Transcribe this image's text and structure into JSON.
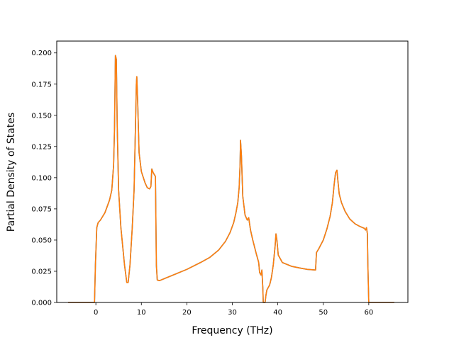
{
  "chart_data": {
    "type": "line",
    "title": "",
    "xlabel": "Frequency (THz)",
    "ylabel": "Partial Density of States",
    "xlim": [
      -8.6,
      68.6
    ],
    "ylim": [
      0.0,
      0.2095
    ],
    "xticks": [
      0,
      10,
      20,
      30,
      40,
      50,
      60
    ],
    "yticks": [
      0.0,
      0.025,
      0.05,
      0.075,
      0.1,
      0.125,
      0.15,
      0.175,
      0.2
    ],
    "ytick_labels": [
      "0.000",
      "0.025",
      "0.050",
      "0.075",
      "0.100",
      "0.125",
      "0.150",
      "0.175",
      "0.200"
    ],
    "grid": false,
    "legend": "none",
    "series": [
      {
        "color": "#1f77b4",
        "points": [
          [
            -6.1,
            0
          ],
          [
            -0.3,
            0
          ],
          [
            -0.1,
            0.03
          ],
          [
            0.2,
            0.06
          ],
          [
            0.5,
            0.064
          ],
          [
            1.0,
            0.066
          ],
          [
            2.0,
            0.072
          ],
          [
            3.0,
            0.082
          ],
          [
            3.5,
            0.09
          ],
          [
            3.9,
            0.11
          ],
          [
            4.1,
            0.14
          ],
          [
            4.3,
            0.198
          ],
          [
            4.5,
            0.195
          ],
          [
            4.7,
            0.14
          ],
          [
            5.0,
            0.09
          ],
          [
            5.5,
            0.06
          ],
          [
            6.3,
            0.03
          ],
          [
            6.8,
            0.016
          ],
          [
            7.1,
            0.016
          ],
          [
            7.5,
            0.03
          ],
          [
            8.0,
            0.06
          ],
          [
            8.4,
            0.09
          ],
          [
            8.7,
            0.14
          ],
          [
            8.9,
            0.175
          ],
          [
            9.0,
            0.181
          ],
          [
            9.2,
            0.16
          ],
          [
            9.5,
            0.12
          ],
          [
            10.0,
            0.105
          ],
          [
            10.8,
            0.096
          ],
          [
            11.3,
            0.092
          ],
          [
            11.8,
            0.091
          ],
          [
            12.1,
            0.093
          ],
          [
            12.3,
            0.107
          ],
          [
            12.6,
            0.104
          ],
          [
            13.1,
            0.101
          ],
          [
            13.3,
            0.03
          ],
          [
            13.5,
            0.018
          ],
          [
            14.0,
            0.0175
          ],
          [
            15.0,
            0.019
          ],
          [
            17.0,
            0.022
          ],
          [
            20.0,
            0.0265
          ],
          [
            23.0,
            0.032
          ],
          [
            25.0,
            0.036
          ],
          [
            27.0,
            0.042
          ],
          [
            28.5,
            0.049
          ],
          [
            29.5,
            0.056
          ],
          [
            30.3,
            0.064
          ],
          [
            30.8,
            0.072
          ],
          [
            31.2,
            0.08
          ],
          [
            31.5,
            0.092
          ],
          [
            31.7,
            0.11
          ],
          [
            31.8,
            0.13
          ],
          [
            32.0,
            0.118
          ],
          [
            32.3,
            0.085
          ],
          [
            32.8,
            0.07
          ],
          [
            33.3,
            0.066
          ],
          [
            33.6,
            0.068
          ],
          [
            34.0,
            0.058
          ],
          [
            34.5,
            0.05
          ],
          [
            35.2,
            0.04
          ],
          [
            35.8,
            0.032
          ],
          [
            36.0,
            0.024
          ],
          [
            36.3,
            0.022
          ],
          [
            36.5,
            0.026
          ],
          [
            36.7,
            0.012
          ],
          [
            36.8,
            0
          ],
          [
            37.2,
            0
          ],
          [
            37.4,
            0.006
          ],
          [
            37.6,
            0.01
          ],
          [
            38.2,
            0.014
          ],
          [
            38.6,
            0.02
          ],
          [
            39.0,
            0.03
          ],
          [
            39.4,
            0.045
          ],
          [
            39.6,
            0.055
          ],
          [
            39.8,
            0.05
          ],
          [
            40.1,
            0.038
          ],
          [
            41.0,
            0.032
          ],
          [
            42.0,
            0.0305
          ],
          [
            43.0,
            0.029
          ],
          [
            45.0,
            0.0275
          ],
          [
            46.5,
            0.0265
          ],
          [
            48.3,
            0.026
          ],
          [
            48.5,
            0.04
          ],
          [
            49.0,
            0.043
          ],
          [
            50.0,
            0.05
          ],
          [
            50.8,
            0.059
          ],
          [
            51.5,
            0.069
          ],
          [
            52.0,
            0.08
          ],
          [
            52.4,
            0.095
          ],
          [
            52.7,
            0.104
          ],
          [
            53.0,
            0.106
          ],
          [
            53.2,
            0.098
          ],
          [
            53.5,
            0.087
          ],
          [
            54.0,
            0.08
          ],
          [
            54.8,
            0.073
          ],
          [
            55.8,
            0.067
          ],
          [
            57.0,
            0.063
          ],
          [
            58.0,
            0.061
          ],
          [
            59.0,
            0.0595
          ],
          [
            59.3,
            0.058
          ],
          [
            59.5,
            0.06
          ],
          [
            59.7,
            0.055
          ],
          [
            59.8,
            0.03
          ],
          [
            60.0,
            0
          ],
          [
            65.6,
            0
          ]
        ]
      },
      {
        "color": "#ff7f0e",
        "points": [
          [
            -6.1,
            0
          ],
          [
            -0.3,
            0
          ],
          [
            -0.1,
            0.03
          ],
          [
            0.2,
            0.06
          ],
          [
            0.5,
            0.064
          ],
          [
            1.0,
            0.066
          ],
          [
            2.0,
            0.072
          ],
          [
            3.0,
            0.082
          ],
          [
            3.5,
            0.09
          ],
          [
            3.9,
            0.11
          ],
          [
            4.1,
            0.14
          ],
          [
            4.3,
            0.198
          ],
          [
            4.5,
            0.195
          ],
          [
            4.7,
            0.14
          ],
          [
            5.0,
            0.09
          ],
          [
            5.5,
            0.06
          ],
          [
            6.3,
            0.03
          ],
          [
            6.8,
            0.016
          ],
          [
            7.1,
            0.016
          ],
          [
            7.5,
            0.03
          ],
          [
            8.0,
            0.06
          ],
          [
            8.4,
            0.09
          ],
          [
            8.7,
            0.14
          ],
          [
            8.9,
            0.175
          ],
          [
            9.0,
            0.181
          ],
          [
            9.2,
            0.16
          ],
          [
            9.5,
            0.12
          ],
          [
            10.0,
            0.105
          ],
          [
            10.8,
            0.096
          ],
          [
            11.3,
            0.092
          ],
          [
            11.8,
            0.091
          ],
          [
            12.1,
            0.093
          ],
          [
            12.3,
            0.107
          ],
          [
            12.6,
            0.104
          ],
          [
            13.1,
            0.101
          ],
          [
            13.3,
            0.03
          ],
          [
            13.5,
            0.018
          ],
          [
            14.0,
            0.0175
          ],
          [
            15.0,
            0.019
          ],
          [
            17.0,
            0.022
          ],
          [
            20.0,
            0.0265
          ],
          [
            23.0,
            0.032
          ],
          [
            25.0,
            0.036
          ],
          [
            27.0,
            0.042
          ],
          [
            28.5,
            0.049
          ],
          [
            29.5,
            0.056
          ],
          [
            30.3,
            0.064
          ],
          [
            30.8,
            0.072
          ],
          [
            31.2,
            0.08
          ],
          [
            31.5,
            0.092
          ],
          [
            31.7,
            0.11
          ],
          [
            31.8,
            0.13
          ],
          [
            32.0,
            0.118
          ],
          [
            32.3,
            0.085
          ],
          [
            32.8,
            0.07
          ],
          [
            33.3,
            0.066
          ],
          [
            33.6,
            0.068
          ],
          [
            34.0,
            0.058
          ],
          [
            34.5,
            0.05
          ],
          [
            35.2,
            0.04
          ],
          [
            35.8,
            0.032
          ],
          [
            36.0,
            0.024
          ],
          [
            36.3,
            0.022
          ],
          [
            36.5,
            0.026
          ],
          [
            36.7,
            0.012
          ],
          [
            36.8,
            0
          ],
          [
            37.2,
            0
          ],
          [
            37.4,
            0.006
          ],
          [
            37.6,
            0.01
          ],
          [
            38.2,
            0.014
          ],
          [
            38.6,
            0.02
          ],
          [
            39.0,
            0.03
          ],
          [
            39.4,
            0.045
          ],
          [
            39.6,
            0.055
          ],
          [
            39.8,
            0.05
          ],
          [
            40.1,
            0.038
          ],
          [
            41.0,
            0.032
          ],
          [
            42.0,
            0.0305
          ],
          [
            43.0,
            0.029
          ],
          [
            45.0,
            0.0275
          ],
          [
            46.5,
            0.0265
          ],
          [
            48.3,
            0.026
          ],
          [
            48.5,
            0.04
          ],
          [
            49.0,
            0.043
          ],
          [
            50.0,
            0.05
          ],
          [
            50.8,
            0.059
          ],
          [
            51.5,
            0.069
          ],
          [
            52.0,
            0.08
          ],
          [
            52.4,
            0.095
          ],
          [
            52.7,
            0.104
          ],
          [
            53.0,
            0.106
          ],
          [
            53.2,
            0.098
          ],
          [
            53.5,
            0.087
          ],
          [
            54.0,
            0.08
          ],
          [
            54.8,
            0.073
          ],
          [
            55.8,
            0.067
          ],
          [
            57.0,
            0.063
          ],
          [
            58.0,
            0.061
          ],
          [
            59.0,
            0.0595
          ],
          [
            59.3,
            0.058
          ],
          [
            59.5,
            0.06
          ],
          [
            59.7,
            0.055
          ],
          [
            59.8,
            0.03
          ],
          [
            60.0,
            0
          ],
          [
            65.6,
            0
          ]
        ]
      }
    ]
  }
}
